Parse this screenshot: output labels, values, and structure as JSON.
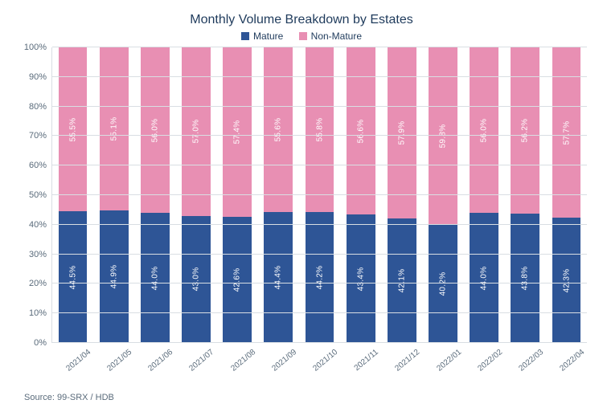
{
  "chart": {
    "type": "stacked-bar-100",
    "title": "Monthly Volume Breakdown by Estates",
    "title_color": "#1f3b5c",
    "title_fontsize": 16,
    "background_color": "#ffffff",
    "grid_color": "#d9dee3",
    "axis_label_color": "#5a6b7b",
    "axis_fontsize": 11,
    "bar_width_ratio": 0.7,
    "ylim": [
      0,
      100
    ],
    "ytick_step": 10,
    "yticks": [
      "0%",
      "10%",
      "20%",
      "30%",
      "40%",
      "50%",
      "60%",
      "70%",
      "80%",
      "90%",
      "100%"
    ],
    "legend": [
      {
        "name": "Mature",
        "color": "#2e5596"
      },
      {
        "name": "Non-Mature",
        "color": "#e88fb3"
      }
    ],
    "bar_label_color": "#ffffff",
    "bar_label_fontsize": 10,
    "categories": [
      "2021/04",
      "2021/05",
      "2021/06",
      "2021/07",
      "2021/08",
      "2021/09",
      "2021/10",
      "2021/11",
      "2021/12",
      "2022/01",
      "2022/02",
      "2022/03",
      "2022/04"
    ],
    "series": {
      "mature": [
        44.5,
        44.9,
        44.0,
        43.0,
        42.6,
        44.4,
        44.2,
        43.4,
        42.1,
        40.2,
        44.0,
        43.8,
        42.3
      ],
      "non_mature": [
        55.5,
        55.1,
        56.0,
        57.0,
        57.4,
        55.6,
        55.8,
        56.6,
        57.9,
        59.8,
        56.0,
        56.2,
        57.7
      ]
    },
    "source": "Source: 99-SRX / HDB"
  }
}
